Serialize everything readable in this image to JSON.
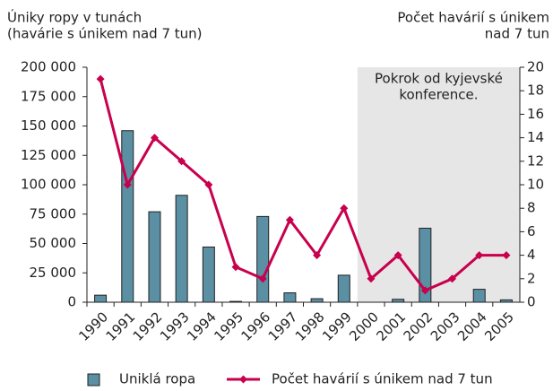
{
  "chart_data": {
    "type": "bar_line",
    "y_label": [
      "Úniky ropy v tunách",
      "(havárie s únikem nad 7 tun)"
    ],
    "y2_label": [
      "Počet havárií s únikem",
      "nad 7 tun"
    ],
    "categories": [
      "1990",
      "1991",
      "1992",
      "1993",
      "1994",
      "1995",
      "1996",
      "1997",
      "1998",
      "1999",
      "2000",
      "2001",
      "2002",
      "2003",
      "2004",
      "2005"
    ],
    "series": [
      {
        "name": "Uniklá ropa",
        "type": "bar",
        "color": "#5b8fa3",
        "values": [
          6000,
          146000,
          77000,
          91000,
          47000,
          700,
          73000,
          8000,
          3000,
          23000,
          0,
          2500,
          63000,
          0,
          11000,
          2000
        ]
      },
      {
        "name": "Počet havárií s únikem nad 7 tun",
        "type": "line",
        "axis": "y2",
        "color": "#c8004d",
        "values": [
          19,
          10,
          14,
          12,
          10,
          3,
          2,
          7,
          4,
          8,
          2,
          4,
          1,
          2,
          4,
          4
        ]
      }
    ],
    "ylim": [
      0,
      200000
    ],
    "yticks": [
      0,
      {
        "value": 25000,
        "label": "25 000"
      },
      {
        "value": 50000,
        "label": "50 000"
      },
      {
        "value": 75000,
        "label": "75 000"
      },
      {
        "value": 100000,
        "label": "100 000"
      },
      {
        "value": 125000,
        "label": "125 000"
      },
      {
        "value": 150000,
        "label": "150 000"
      },
      {
        "value": 175000,
        "label": "175 000"
      },
      {
        "value": 200000,
        "label": "200 000"
      }
    ],
    "y2lim": [
      0,
      20
    ],
    "y2ticks": [
      0,
      2,
      4,
      6,
      8,
      10,
      12,
      14,
      16,
      18,
      20
    ],
    "annotation": {
      "text": [
        "Pokrok od kyjevské",
        "konference."
      ],
      "from": "2000",
      "color": "#e6e6e6"
    },
    "legend": "bottom"
  }
}
